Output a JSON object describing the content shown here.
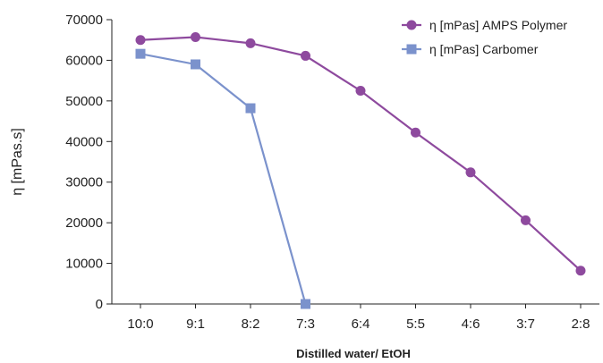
{
  "chart_data": {
    "type": "line",
    "categories": [
      "10:0",
      "9:1",
      "8:2",
      "7:3",
      "6:4",
      "5:5",
      "4:6",
      "3:7",
      "2:8"
    ],
    "series": [
      {
        "name": "η [mPas] AMPS Polymer",
        "color": "#8e4a9e",
        "marker": "circle",
        "values": [
          65000,
          65700,
          64200,
          61100,
          52500,
          42200,
          32400,
          20600,
          8200
        ]
      },
      {
        "name": "η [mPas] Carbomer",
        "color": "#7b92cc",
        "marker": "square",
        "values": [
          61600,
          59000,
          48200,
          0,
          null,
          null,
          null,
          null,
          null
        ]
      }
    ],
    "xlabel": "Distilled water/ EtOH",
    "ylabel": "η [mPas.s]",
    "ylim": [
      0,
      70000
    ],
    "yticks": [
      0,
      10000,
      20000,
      30000,
      40000,
      50000,
      60000,
      70000
    ],
    "grid": false,
    "legend": "top-right"
  }
}
